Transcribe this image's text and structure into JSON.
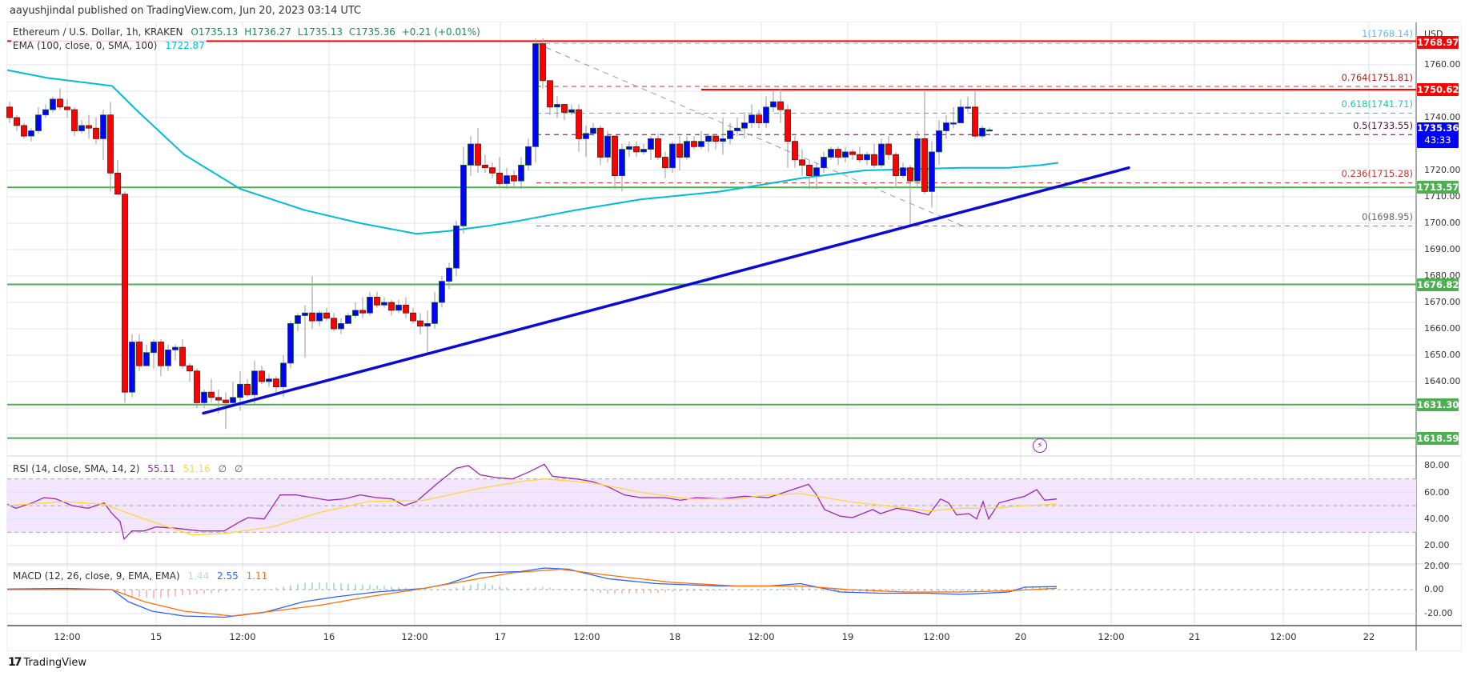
{
  "header": {
    "publisher": "aayushjindal published on TradingView.com, Jun 20, 2023 03:14 UTC"
  },
  "symbol_legend": {
    "title": "Ethereum / U.S. Dollar, 1h, KRAKEN",
    "open": "O1735.13",
    "high": "H1736.27",
    "low": "L1735.13",
    "close": "C1735.36",
    "change": "+0.21 (+0.01%)"
  },
  "ema_legend": {
    "label": "EMA (100, close, 0, SMA, 100)",
    "value": "1722.87",
    "color": "#00bcd4"
  },
  "rsi_legend": {
    "label": "RSI (14, close, SMA, 14, 2)",
    "rsi": "55.11",
    "sma": "51.16",
    "extra1": "∅",
    "extra2": "∅"
  },
  "macd_legend": {
    "label": "MACD (12, 26, close, 9, EMA, EMA)",
    "hist": "1.44",
    "macd": "2.55",
    "signal": "1.11"
  },
  "price_axis": {
    "currency": "USD",
    "ticks": [
      "1760.00",
      "1740.00",
      "1720.00",
      "1710.00",
      "1700.00",
      "1690.00",
      "1680.00",
      "1670.00",
      "1660.00",
      "1650.00",
      "1640.00"
    ],
    "tags": [
      {
        "value": "1768.97",
        "color": "#ff0000"
      },
      {
        "value": "1750.62",
        "color": "#ff0000"
      },
      {
        "value": "1735.36",
        "sub": "43:33",
        "color": "#0000ff"
      },
      {
        "value": "1713.57",
        "color": "#4caf50"
      },
      {
        "value": "1676.82",
        "color": "#4caf50"
      },
      {
        "value": "1631.30",
        "color": "#4caf50"
      },
      {
        "value": "1618.59",
        "color": "#4caf50"
      }
    ]
  },
  "rsi_axis": {
    "ticks": [
      "80.00",
      "60.00",
      "40.00",
      "20.00"
    ]
  },
  "macd_axis": {
    "ticks": [
      "20.00",
      "0.00",
      "-20.00"
    ]
  },
  "time_axis": {
    "labels": [
      "12:00",
      "15",
      "12:00",
      "16",
      "12:00",
      "17",
      "12:00",
      "18",
      "12:00",
      "19",
      "12:00",
      "20",
      "12:00",
      "21",
      "12:00",
      "22"
    ]
  },
  "fib_levels": [
    {
      "label": "1(1768.14)",
      "color": "#64b5f6"
    },
    {
      "label": "0.764(1751.81)",
      "color": "#b71c1c"
    },
    {
      "label": "0.618(1741.71)",
      "color": "#26c6a0"
    },
    {
      "label": "0.5(1733.55)",
      "color": "#4a1030"
    },
    {
      "label": "0.236(1715.28)",
      "color": "#d32f2f"
    },
    {
      "label": "0(1698.95)",
      "color": "#666666"
    }
  ],
  "footer": {
    "brand": "TradingView",
    "brand_mark": "17"
  },
  "chart_data": {
    "type": "candlestick",
    "title": "Ethereum / U.S. Dollar, 1h, KRAKEN",
    "xlabel": "",
    "ylabel": "USD",
    "ylim": [
      1610,
      1775
    ],
    "x_start": "Jun 14 04:00",
    "interval": "1h",
    "candles": [
      [
        1744,
        1740,
        1746,
        1738
      ],
      [
        1740,
        1737,
        1741,
        1735
      ],
      [
        1737,
        1733,
        1738,
        1732
      ],
      [
        1733,
        1735,
        1736,
        1731
      ],
      [
        1735,
        1741,
        1744,
        1734
      ],
      [
        1741,
        1743,
        1745,
        1740
      ],
      [
        1743,
        1747,
        1748,
        1742
      ],
      [
        1747,
        1744,
        1751,
        1743
      ],
      [
        1744,
        1743,
        1747,
        1740
      ],
      [
        1743,
        1735,
        1744,
        1733
      ],
      [
        1735,
        1737,
        1739,
        1734
      ],
      [
        1737,
        1736,
        1741,
        1732
      ],
      [
        1736,
        1732,
        1740,
        1730
      ],
      [
        1732,
        1741,
        1743,
        1724
      ],
      [
        1741,
        1719,
        1746,
        1712
      ],
      [
        1719,
        1711,
        1724,
        1711
      ],
      [
        1711,
        1636,
        1712,
        1632
      ],
      [
        1636,
        1655,
        1658,
        1634
      ],
      [
        1655,
        1646,
        1658,
        1644
      ],
      [
        1646,
        1651,
        1654,
        1647
      ],
      [
        1651,
        1655,
        1656,
        1645
      ],
      [
        1655,
        1646,
        1656,
        1642
      ],
      [
        1646,
        1652,
        1654,
        1644
      ],
      [
        1652,
        1653,
        1654,
        1648
      ],
      [
        1653,
        1646,
        1656,
        1645
      ],
      [
        1646,
        1644,
        1647,
        1640
      ],
      [
        1644,
        1632,
        1645,
        1630
      ],
      [
        1632,
        1636,
        1637,
        1630
      ],
      [
        1636,
        1634,
        1641,
        1632
      ],
      [
        1634,
        1633,
        1637,
        1628
      ],
      [
        1633,
        1632,
        1636,
        1622
      ],
      [
        1632,
        1634,
        1640,
        1631
      ],
      [
        1634,
        1639,
        1644,
        1629
      ],
      [
        1639,
        1635,
        1641,
        1634
      ],
      [
        1635,
        1644,
        1648,
        1631
      ],
      [
        1644,
        1640,
        1646,
        1639
      ],
      [
        1640,
        1641,
        1643,
        1638
      ],
      [
        1641,
        1638,
        1642,
        1635
      ],
      [
        1638,
        1647,
        1650,
        1634
      ],
      [
        1647,
        1662,
        1663,
        1645
      ],
      [
        1662,
        1665,
        1666,
        1659
      ],
      [
        1665,
        1666,
        1669,
        1649
      ],
      [
        1666,
        1663,
        1680,
        1660
      ],
      [
        1663,
        1666,
        1667,
        1661
      ],
      [
        1666,
        1664,
        1668,
        1663
      ],
      [
        1664,
        1660,
        1666,
        1659
      ],
      [
        1660,
        1662,
        1664,
        1658
      ],
      [
        1662,
        1665,
        1666,
        1662
      ],
      [
        1665,
        1667,
        1670,
        1664
      ],
      [
        1667,
        1666,
        1672,
        1664
      ],
      [
        1666,
        1672,
        1674,
        1665
      ],
      [
        1672,
        1669,
        1674,
        1668
      ],
      [
        1669,
        1670,
        1672,
        1668
      ],
      [
        1670,
        1667,
        1671,
        1665
      ],
      [
        1667,
        1669,
        1671,
        1666
      ],
      [
        1669,
        1666,
        1672,
        1664
      ],
      [
        1666,
        1663,
        1668,
        1662
      ],
      [
        1663,
        1661,
        1666,
        1658
      ],
      [
        1661,
        1662,
        1667,
        1651
      ],
      [
        1662,
        1670,
        1674,
        1660
      ],
      [
        1670,
        1678,
        1680,
        1668
      ],
      [
        1678,
        1683,
        1685,
        1675
      ],
      [
        1683,
        1699,
        1701,
        1680
      ],
      [
        1699,
        1722,
        1729,
        1696
      ],
      [
        1722,
        1730,
        1733,
        1718
      ],
      [
        1730,
        1722,
        1736,
        1719
      ],
      [
        1722,
        1721,
        1726,
        1719
      ],
      [
        1721,
        1719,
        1723,
        1717
      ],
      [
        1719,
        1715,
        1725,
        1714
      ],
      [
        1715,
        1718,
        1721,
        1713
      ],
      [
        1718,
        1716,
        1720,
        1714
      ],
      [
        1716,
        1722,
        1725,
        1713
      ],
      [
        1722,
        1729,
        1732,
        1720
      ],
      [
        1729,
        1768,
        1770,
        1723
      ],
      [
        1768,
        1754,
        1770,
        1751
      ],
      [
        1754,
        1744,
        1750,
        1741
      ],
      [
        1744,
        1745,
        1748,
        1740
      ],
      [
        1745,
        1742,
        1745,
        1739
      ],
      [
        1742,
        1743,
        1745,
        1741
      ],
      [
        1743,
        1732,
        1745,
        1727
      ],
      [
        1732,
        1734,
        1737,
        1725
      ],
      [
        1734,
        1736,
        1738,
        1733
      ],
      [
        1736,
        1725,
        1737,
        1722
      ],
      [
        1725,
        1733,
        1735,
        1723
      ],
      [
        1733,
        1718,
        1733,
        1713
      ],
      [
        1718,
        1728,
        1730,
        1712
      ],
      [
        1728,
        1729,
        1731,
        1725
      ],
      [
        1729,
        1727,
        1731,
        1725
      ],
      [
        1727,
        1728,
        1730,
        1726
      ],
      [
        1728,
        1732,
        1733,
        1724
      ],
      [
        1732,
        1725,
        1734,
        1724
      ],
      [
        1725,
        1721,
        1727,
        1717
      ],
      [
        1721,
        1730,
        1731,
        1719
      ],
      [
        1730,
        1725,
        1733,
        1720
      ],
      [
        1725,
        1731,
        1733,
        1724
      ],
      [
        1731,
        1729,
        1733,
        1728
      ],
      [
        1729,
        1731,
        1735,
        1728
      ],
      [
        1731,
        1733,
        1734,
        1727
      ],
      [
        1733,
        1731,
        1734,
        1728
      ],
      [
        1731,
        1732,
        1740,
        1726
      ],
      [
        1732,
        1735,
        1738,
        1730
      ],
      [
        1735,
        1736,
        1740,
        1733
      ],
      [
        1736,
        1738,
        1742,
        1732
      ],
      [
        1738,
        1741,
        1745,
        1736
      ],
      [
        1741,
        1738,
        1743,
        1736
      ],
      [
        1738,
        1744,
        1748,
        1736
      ],
      [
        1744,
        1746,
        1750,
        1742
      ],
      [
        1746,
        1743,
        1751,
        1738
      ],
      [
        1743,
        1731,
        1745,
        1721
      ],
      [
        1731,
        1724,
        1733,
        1721
      ],
      [
        1724,
        1722,
        1728,
        1718
      ],
      [
        1722,
        1718,
        1724,
        1713
      ],
      [
        1718,
        1721,
        1723,
        1713
      ],
      [
        1721,
        1725,
        1727,
        1719
      ],
      [
        1725,
        1728,
        1729,
        1724
      ],
      [
        1728,
        1725,
        1729,
        1722
      ],
      [
        1725,
        1727,
        1729,
        1723
      ],
      [
        1727,
        1726,
        1728,
        1724
      ],
      [
        1726,
        1724,
        1729,
        1723
      ],
      [
        1724,
        1726,
        1727,
        1722
      ],
      [
        1726,
        1722,
        1730,
        1721
      ],
      [
        1722,
        1730,
        1732,
        1721
      ],
      [
        1730,
        1726,
        1733,
        1724
      ],
      [
        1726,
        1718,
        1727,
        1714
      ],
      [
        1718,
        1721,
        1723,
        1717
      ],
      [
        1721,
        1716,
        1722,
        1699
      ],
      [
        1716,
        1732,
        1735,
        1714
      ],
      [
        1732,
        1712,
        1750,
        1711
      ],
      [
        1712,
        1727,
        1731,
        1706
      ],
      [
        1727,
        1735,
        1739,
        1722
      ],
      [
        1735,
        1738,
        1741,
        1732
      ],
      [
        1738,
        1738,
        1744,
        1736
      ],
      [
        1738,
        1744,
        1747,
        1738
      ],
      [
        1744,
        1744,
        1748,
        1742
      ],
      [
        1744,
        1733,
        1750,
        1732
      ],
      [
        1733,
        1736,
        1737,
        1732
      ],
      [
        1735.13,
        1735.36,
        1736.27,
        1735.13
      ]
    ],
    "ema100": "declining from ~1758 (Jun 14) to ~1696 (Jun 16 12:00), then rising to 1722.87",
    "horizontal_levels": [
      1768.97,
      1750.62,
      1713.57,
      1676.82,
      1631.3,
      1618.59
    ],
    "trendline": {
      "from": [
        "Jun 15 06:00",
        1628
      ],
      "to": [
        "Jun 20 10:00",
        1721
      ]
    },
    "fibonacci": {
      "0": 1698.95,
      "0.236": 1715.28,
      "0.5": 1733.55,
      "0.618": 1741.71,
      "0.764": 1751.81,
      "1": 1768.14
    },
    "rsi": {
      "last": 55.11,
      "sma_last": 51.16,
      "band": [
        30,
        70
      ]
    },
    "macd": {
      "hist": 1.44,
      "macd": 2.55,
      "signal": 1.11
    }
  }
}
